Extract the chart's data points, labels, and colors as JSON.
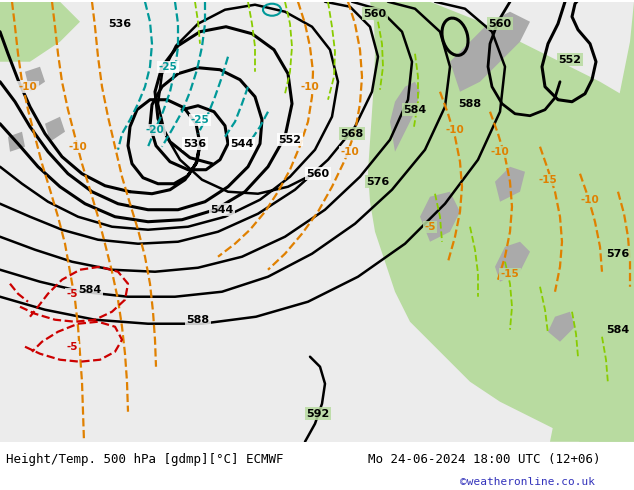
{
  "title_left": "Height/Temp. 500 hPa [gdmp][°C] ECMWF",
  "title_right": "Mo 24-06-2024 18:00 UTC (12+06)",
  "credit": "©weatheronline.co.uk",
  "bg_color": "#ffffff",
  "map_bg_green": "#b8dba0",
  "map_bg_white": "#f0f0f0",
  "map_land_gray": "#aaaaaa",
  "title_fontsize": 9,
  "credit_color": "#3333bb",
  "credit_fontsize": 8,
  "fig_width": 6.34,
  "fig_height": 4.9,
  "black_lw": 2.2,
  "colored_lw": 1.6
}
